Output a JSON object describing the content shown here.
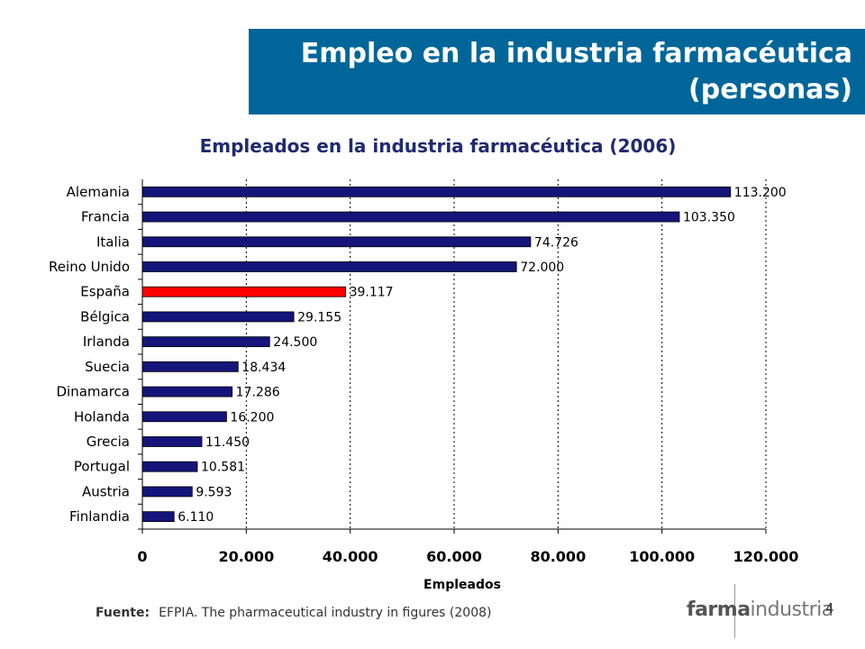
{
  "slide": {
    "title_line1": "Empleo en la industria farmacéutica",
    "title_line2": "(personas)",
    "source_label": "Fuente:",
    "source_text": "EFPIA. The pharmaceutical industry in figures (2008)",
    "logo_part1": "farma",
    "logo_part2": "industria",
    "page_number": "4"
  },
  "colors": {
    "banner": "#006699",
    "bar": "#14147a",
    "highlight": "#ff0000",
    "title": "#1f2a70"
  },
  "chart_data": {
    "type": "bar",
    "orientation": "horizontal",
    "title": "Empleados en la industria farmacéutica (2006)",
    "xlabel": "Empleados",
    "ylabel": "",
    "xlim": [
      0,
      120000
    ],
    "x_ticks": [
      0,
      20000,
      40000,
      60000,
      80000,
      100000,
      120000
    ],
    "x_tick_labels": [
      "0",
      "20.000",
      "40.000",
      "60.000",
      "80.000",
      "100.000",
      "120.000"
    ],
    "grid": "vertical dotted",
    "categories": [
      "Alemania",
      "Francia",
      "Italia",
      "Reino Unido",
      "España",
      "Bélgica",
      "Irlanda",
      "Suecia",
      "Dinamarca",
      "Holanda",
      "Grecia",
      "Portugal",
      "Austria",
      "Finlandia"
    ],
    "values": [
      113200,
      103350,
      74726,
      72000,
      39117,
      29155,
      24500,
      18434,
      17286,
      16200,
      11450,
      10581,
      9593,
      6110
    ],
    "value_labels": [
      "113.200",
      "103.350",
      "74.726",
      "72.000",
      "39.117",
      "29.155",
      "24.500",
      "18.434",
      "17.286",
      "16.200",
      "11.450",
      "10.581",
      "9.593",
      "6.110"
    ],
    "highlight_category": "España"
  }
}
